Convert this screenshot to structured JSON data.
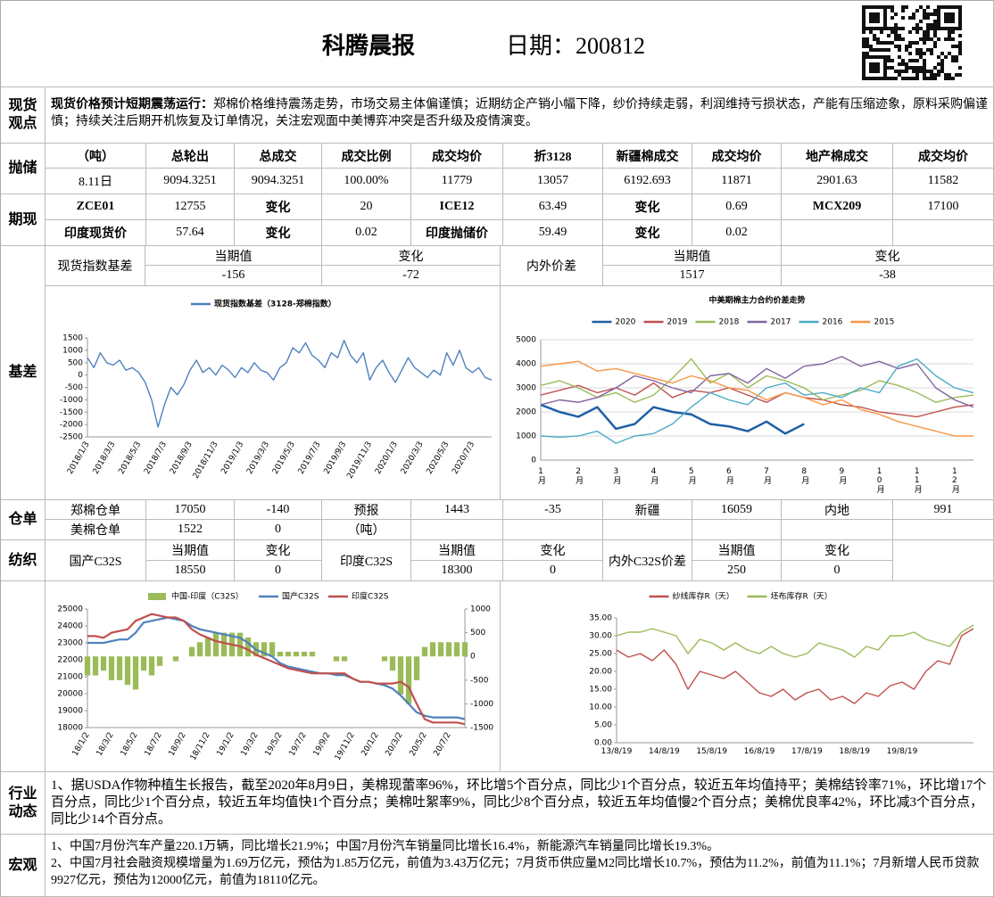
{
  "header": {
    "title": "科腾晨报",
    "date": "日期：200812"
  },
  "summary": {
    "label": "现货观点",
    "heading": "现货价格预计短期震荡运行：",
    "text": "郑棉价格维持震荡走势，市场交易主体偏谨慎；近期纺企产销小幅下降，纱价持续走弱，利润维持亏损状态，产能有压缩迹象，原料采购偏谨慎；持续关注后期开机恢复及订单情况，关注宏观面中美博弈冲突是否升级及疫情演变。"
  },
  "auction": {
    "label": "抛储",
    "header": [
      "（吨）",
      "总轮出",
      "总成交",
      "成交比例",
      "成交均价",
      "折3128",
      "新疆棉成交",
      "成交均价",
      "地产棉成交",
      "成交均价"
    ],
    "row": [
      "8.11日",
      "9094.3251",
      "9094.3251",
      "100.00%",
      11779,
      13057,
      6192.693,
      11871,
      2901.63,
      11582
    ]
  },
  "futures": {
    "label": "期现",
    "rows": [
      [
        "ZCE01",
        12755,
        "变化",
        20,
        "ICE12",
        63.49,
        "变化",
        0.69,
        "MCX209",
        17100
      ],
      [
        "印度现货价",
        57.64,
        "变化",
        0.02,
        "印度抛储价",
        59.49,
        "变化",
        0.02
      ]
    ]
  },
  "basis": {
    "label": "基差",
    "items": [
      {
        "name": "现货指数基差",
        "fields": [
          {
            "head": "当期值",
            "value": -156
          },
          {
            "head": "变化",
            "value": -72
          }
        ]
      },
      {
        "name": "内外价差",
        "fields": [
          {
            "head": "当期值",
            "value": 1517
          },
          {
            "head": "变化",
            "value": -38
          }
        ]
      }
    ]
  },
  "warehouse": {
    "label": "仓单",
    "rows": [
      [
        "郑棉仓单",
        17050,
        -140,
        "预报",
        1443,
        -35,
        "新疆",
        16059,
        "内地",
        991
      ],
      [
        "美棉仓单",
        1522,
        0,
        "（吨）"
      ]
    ]
  },
  "textile": {
    "label": "纺织",
    "items": [
      {
        "name": "国产C32S",
        "fields": [
          {
            "head": "当期值",
            "value": 18550
          },
          {
            "head": "变化",
            "value": 0
          }
        ]
      },
      {
        "name": "印度C32S",
        "fields": [
          {
            "head": "当期值",
            "value": 18300
          },
          {
            "head": "变化",
            "value": 0
          }
        ]
      },
      {
        "name": "内外C32S价差",
        "fields": [
          {
            "head": "当期值",
            "value": 250
          },
          {
            "head": "变化",
            "value": 0
          }
        ]
      }
    ]
  },
  "industry": {
    "label": "行业动态",
    "text": "1、据USDA作物种植生长报告，截至2020年8月9日，美棉现蕾率96%，环比增5个百分点，同比少1个百分点，较近五年均值持平；美棉结铃率71%，环比增17个百分点，同比少1个百分点，较近五年均值快1个百分点；美棉吐絮率9%，同比少8个百分点，较近五年均值慢2个百分点；美棉优良率42%，环比减3个百分点，同比少14个百分点。"
  },
  "macro": {
    "label": "宏观",
    "lines": [
      "1、中国7月份汽车产量220.1万辆，同比增长21.9%；中国7月份汽车销量同比增长16.4%，新能源汽车销量同比增长19.3%。",
      "2、中国7月社会融资规模增量为1.69万亿元，预估为1.85万亿元，前值为3.43万亿元；7月货币供应量M2同比增长10.7%，预估为11.2%，前值为11.1%；7月新增人民币贷款9927亿元，预估为12000亿元，前值为18110亿元。"
    ]
  },
  "chart_data": [
    {
      "type": "line",
      "categories": [
        "2018/1/3",
        null,
        null,
        null,
        "2018/3/3",
        null,
        null,
        null,
        "2018/5/3",
        null,
        null,
        null,
        "2018/7/3",
        null,
        null,
        null,
        "2018/9/3",
        null,
        null,
        null,
        "2018/11/3",
        null,
        null,
        null,
        "2019/1/3",
        null,
        null,
        null,
        "2019/3/3",
        null,
        null,
        null,
        "2019/5/3",
        null,
        null,
        null,
        "2019/7/3",
        null,
        null,
        null,
        "2019/9/3",
        null,
        null,
        null,
        "2019/11/3",
        null,
        null,
        null,
        "2020/1/3",
        null,
        null,
        null,
        "2020/3/3",
        null,
        null,
        null,
        "2020/5/3",
        null,
        null,
        null,
        "2020/7/3",
        null,
        null,
        null
      ],
      "series": [
        {
          "name": "现货指数基差（3128-郑棉指数）",
          "color": "#4f81bd",
          "values": [
            700,
            300,
            900,
            500,
            400,
            600,
            200,
            300,
            100,
            -300,
            -1000,
            -2100,
            -1200,
            -500,
            -800,
            -400,
            200,
            600,
            100,
            300,
            0,
            400,
            200,
            -100,
            300,
            100,
            500,
            200,
            100,
            -200,
            300,
            500,
            1100,
            900,
            1300,
            800,
            600,
            300,
            900,
            700,
            1400,
            800,
            500,
            900,
            -200,
            300,
            600,
            100,
            -300,
            200,
            700,
            300,
            100,
            -100,
            200,
            0,
            900,
            400,
            1000,
            300,
            100,
            300,
            -100,
            -200
          ]
        }
      ],
      "ylim": [
        -2500,
        1500
      ],
      "yticks": [
        -2500,
        -2000,
        -1500,
        -1000,
        -500,
        0,
        500,
        1000,
        1500
      ],
      "grid": false
    },
    {
      "type": "line",
      "title": "中美期棉主力合约价差走势",
      "categories": [
        "1月",
        null,
        "2月",
        null,
        "3月",
        null,
        "4月",
        null,
        "5月",
        null,
        "6月",
        null,
        "7月",
        null,
        "8月",
        null,
        "9月",
        null,
        "10月",
        null,
        "11月",
        null,
        "12月",
        null
      ],
      "series": [
        {
          "name": "2020",
          "color": "#1f5fa6",
          "values": [
            2300,
            2000,
            1800,
            2200,
            1300,
            1500,
            2200,
            2000,
            1900,
            1500,
            1400,
            1200,
            1600,
            1100,
            1500,
            null,
            null,
            null,
            null,
            null,
            null,
            null,
            null,
            null
          ]
        },
        {
          "name": "2019",
          "color": "#c0504d",
          "values": [
            2700,
            2900,
            3100,
            2800,
            3000,
            2700,
            3200,
            2600,
            2900,
            2800,
            3000,
            2700,
            2400,
            2800,
            2600,
            2500,
            2300,
            2200,
            2000,
            1900,
            1800,
            2000,
            2200,
            2300
          ]
        },
        {
          "name": "2018",
          "color": "#9bbb59",
          "values": [
            3100,
            3300,
            3000,
            2600,
            2800,
            2400,
            2700,
            3400,
            4200,
            3200,
            3600,
            3000,
            3500,
            3300,
            3000,
            2500,
            2700,
            2900,
            3300,
            3100,
            2800,
            2400,
            2600,
            2700
          ]
        },
        {
          "name": "2017",
          "color": "#8064a2",
          "values": [
            2300,
            2500,
            2400,
            2600,
            3000,
            3500,
            3300,
            3000,
            2800,
            3500,
            3600,
            3200,
            3800,
            3400,
            3900,
            4000,
            4300,
            3900,
            4100,
            3800,
            4000,
            3000,
            2500,
            2200
          ]
        },
        {
          "name": "2016",
          "color": "#4bacc6",
          "values": [
            1000,
            950,
            1000,
            1200,
            700,
            1000,
            1100,
            1500,
            2200,
            2800,
            2500,
            2300,
            3000,
            3200,
            2700,
            2800,
            2600,
            3000,
            2800,
            3900,
            4200,
            3500,
            3000,
            2800
          ]
        },
        {
          "name": "2015",
          "color": "#f79646",
          "values": [
            3900,
            4000,
            4100,
            3700,
            3800,
            3600,
            3400,
            3200,
            3500,
            3300,
            3000,
            2900,
            2500,
            2800,
            2600,
            2300,
            2500,
            2100,
            1900,
            1600,
            1400,
            1200,
            1000,
            1000
          ]
        }
      ],
      "ylim": [
        0,
        5000
      ],
      "yticks": [
        0,
        1000,
        2000,
        3000,
        4000,
        5000
      ],
      "grid": true
    },
    {
      "type": "combo",
      "categories": [
        "18/1/2",
        null,
        null,
        "18/3/2",
        null,
        null,
        "18/5/2",
        null,
        null,
        "18/7/2",
        null,
        null,
        "18/9/2",
        null,
        null,
        "18/11/2",
        null,
        null,
        "19/1/2",
        null,
        null,
        "19/3/2",
        null,
        null,
        "19/5/2",
        null,
        null,
        "19/7/2",
        null,
        null,
        "19/9/2",
        null,
        null,
        "19/11/2",
        null,
        null,
        "20/1/2",
        null,
        null,
        "20/3/2",
        null,
        null,
        "20/5/2",
        null,
        null,
        "20/7/2",
        null,
        null
      ],
      "series": [
        {
          "name": "中国-印度（C32S）",
          "kind": "bar",
          "axis": "y2",
          "color": "#9bbb59",
          "values": [
            -400,
            -400,
            -300,
            -500,
            -500,
            -600,
            -700,
            -300,
            -400,
            -200,
            0,
            -100,
            0,
            200,
            300,
            400,
            500,
            500,
            500,
            500,
            400,
            300,
            300,
            300,
            100,
            100,
            100,
            100,
            100,
            0,
            0,
            -100,
            -100,
            0,
            0,
            0,
            0,
            -100,
            -300,
            -800,
            -1000,
            -500,
            200,
            300,
            300,
            300,
            300,
            300
          ]
        },
        {
          "name": "国产C32S",
          "color": "#4f81bd",
          "values": [
            23000,
            23000,
            23000,
            23100,
            23200,
            23200,
            23600,
            24200,
            24300,
            24400,
            24500,
            24400,
            24300,
            24000,
            23800,
            23700,
            23600,
            23500,
            23400,
            23300,
            23000,
            22600,
            22400,
            22200,
            21800,
            21600,
            21500,
            21400,
            21300,
            21200,
            21200,
            21100,
            21100,
            20900,
            20700,
            20700,
            20600,
            20500,
            20300,
            19900,
            19400,
            18900,
            18700,
            18600,
            18600,
            18600,
            18600,
            18500
          ]
        },
        {
          "name": "印度C32S",
          "color": "#c0504d",
          "values": [
            23400,
            23400,
            23300,
            23600,
            23700,
            23800,
            24300,
            24500,
            24700,
            24600,
            24500,
            24500,
            24300,
            23800,
            23500,
            23300,
            23100,
            23000,
            22900,
            22800,
            22600,
            22300,
            22100,
            21900,
            21700,
            21500,
            21400,
            21300,
            21200,
            21200,
            21200,
            21200,
            21200,
            20900,
            20700,
            20700,
            20600,
            20600,
            20600,
            20700,
            20400,
            19400,
            18500,
            18300,
            18300,
            18300,
            18300,
            18200
          ]
        }
      ],
      "ylim": [
        18000,
        25000
      ],
      "yticks": [
        18000,
        19000,
        20000,
        21000,
        22000,
        23000,
        24000,
        25000
      ],
      "y2lim": [
        -1500,
        1000
      ],
      "y2ticks": [
        -1500,
        -1000,
        -500,
        0,
        500,
        1000
      ],
      "grid": false
    },
    {
      "type": "line",
      "categories": [
        "13/8/19",
        null,
        null,
        null,
        "14/8/19",
        null,
        null,
        null,
        "15/8/19",
        null,
        null,
        null,
        "16/8/19",
        null,
        null,
        null,
        "17/8/19",
        null,
        null,
        null,
        "18/8/19",
        null,
        null,
        null,
        "19/8/19",
        null,
        null,
        null,
        null,
        null,
        null
      ],
      "series": [
        {
          "name": "纱线库存R（天）",
          "color": "#c0504d",
          "values": [
            26,
            24,
            25,
            23,
            26,
            22,
            15,
            20,
            19,
            18,
            20,
            17,
            14,
            13,
            15,
            12,
            14,
            15,
            12,
            13,
            11,
            14,
            13,
            16,
            17,
            15,
            20,
            23,
            22,
            30,
            32
          ]
        },
        {
          "name": "坯布库存R（天）",
          "color": "#9bbb59",
          "values": [
            30,
            31,
            31,
            32,
            31,
            30,
            25,
            29,
            28,
            26,
            28,
            26,
            25,
            27,
            25,
            24,
            25,
            28,
            27,
            26,
            24,
            27,
            26,
            30,
            30,
            31,
            29,
            28,
            27,
            31,
            33
          ]
        }
      ],
      "ylim": [
        0,
        35
      ],
      "yticks": [
        {
          "value": 0,
          "label": "0.00"
        },
        {
          "value": 5,
          "label": "5.00"
        },
        {
          "value": 10,
          "label": "10.00"
        },
        {
          "value": 15,
          "label": "15.00"
        },
        {
          "value": 20,
          "label": "20.00"
        },
        {
          "value": 25,
          "label": "25.00"
        },
        {
          "value": 30,
          "label": "30.00"
        },
        {
          "value": 35,
          "label": "35.00"
        }
      ],
      "grid": false
    }
  ]
}
